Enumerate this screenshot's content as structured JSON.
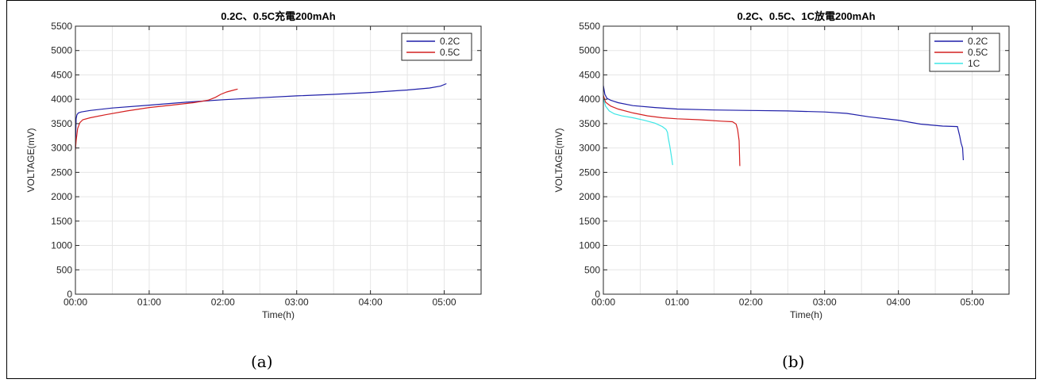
{
  "figure": {
    "caption_a": "(a)",
    "caption_b": "(b)"
  },
  "chart_data": [
    {
      "type": "line",
      "title": "0.2C、0.5C充電200mAh",
      "xlabel": "Time(h)",
      "ylabel": "VOLTAGE(mV)",
      "xlim": [
        0,
        5.5
      ],
      "ylim": [
        0,
        5500
      ],
      "xticks": [
        0,
        1,
        2,
        3,
        4,
        5
      ],
      "xticklabels": [
        "00:00",
        "01:00",
        "02:00",
        "03:00",
        "04:00",
        "05:00"
      ],
      "yticks": [
        0,
        500,
        1000,
        1500,
        2000,
        2500,
        3000,
        3500,
        4000,
        4500,
        5000,
        5500
      ],
      "grid": true,
      "legend_position": "top-right",
      "series": [
        {
          "name": "0.2C",
          "color": "#1f1fa8",
          "x": [
            0,
            0.01,
            0.02,
            0.04,
            0.08,
            0.2,
            0.5,
            1.0,
            1.5,
            2.0,
            2.5,
            3.0,
            3.5,
            4.0,
            4.5,
            4.8,
            4.95,
            5.03
          ],
          "y": [
            3000,
            3600,
            3680,
            3720,
            3740,
            3770,
            3820,
            3880,
            3940,
            3990,
            4030,
            4070,
            4100,
            4140,
            4190,
            4230,
            4270,
            4320
          ]
        },
        {
          "name": "0.5C",
          "color": "#d42020",
          "x": [
            0,
            0.01,
            0.03,
            0.06,
            0.1,
            0.2,
            0.4,
            0.7,
            1.0,
            1.3,
            1.6,
            1.8,
            1.9,
            1.97,
            2.05,
            2.15,
            2.2
          ],
          "y": [
            2960,
            3150,
            3400,
            3520,
            3580,
            3620,
            3680,
            3760,
            3830,
            3880,
            3930,
            3980,
            4040,
            4100,
            4150,
            4190,
            4210
          ]
        }
      ]
    },
    {
      "type": "line",
      "title": "0.2C、0.5C、1C放電200mAh",
      "xlabel": "Time(h)",
      "ylabel": "VOLTAGE(mV)",
      "xlim": [
        0,
        5.5
      ],
      "ylim": [
        0,
        5500
      ],
      "xticks": [
        0,
        1,
        2,
        3,
        4,
        5
      ],
      "xticklabels": [
        "00:00",
        "01:00",
        "02:00",
        "03:00",
        "04:00",
        "05:00"
      ],
      "yticks": [
        0,
        500,
        1000,
        1500,
        2000,
        2500,
        3000,
        3500,
        4000,
        4500,
        5000,
        5500
      ],
      "grid": true,
      "legend_position": "top-right",
      "series": [
        {
          "name": "0.2C",
          "color": "#1f1fa8",
          "x": [
            0,
            0.02,
            0.05,
            0.1,
            0.2,
            0.4,
            0.7,
            1.0,
            1.5,
            2.0,
            2.5,
            3.0,
            3.3,
            3.6,
            4.0,
            4.3,
            4.6,
            4.8,
            4.83,
            4.85,
            4.87,
            4.88
          ],
          "y": [
            4280,
            4100,
            4020,
            3980,
            3930,
            3870,
            3830,
            3800,
            3780,
            3770,
            3760,
            3740,
            3710,
            3640,
            3570,
            3490,
            3450,
            3440,
            3250,
            3100,
            3000,
            2750
          ]
        },
        {
          "name": "0.5C",
          "color": "#d42020",
          "x": [
            0,
            0.03,
            0.1,
            0.2,
            0.4,
            0.6,
            0.8,
            1.0,
            1.3,
            1.6,
            1.75,
            1.8,
            1.82,
            1.84,
            1.85
          ],
          "y": [
            4080,
            3940,
            3860,
            3800,
            3720,
            3660,
            3620,
            3600,
            3580,
            3550,
            3540,
            3490,
            3380,
            3150,
            2630
          ]
        },
        {
          "name": "1C",
          "color": "#3de6e6",
          "x": [
            0,
            0.03,
            0.08,
            0.15,
            0.25,
            0.4,
            0.55,
            0.7,
            0.8,
            0.85,
            0.87,
            0.88,
            0.9,
            0.92,
            0.94
          ],
          "y": [
            4020,
            3860,
            3760,
            3700,
            3660,
            3620,
            3570,
            3510,
            3440,
            3380,
            3320,
            3200,
            3050,
            2850,
            2650
          ]
        }
      ]
    }
  ]
}
